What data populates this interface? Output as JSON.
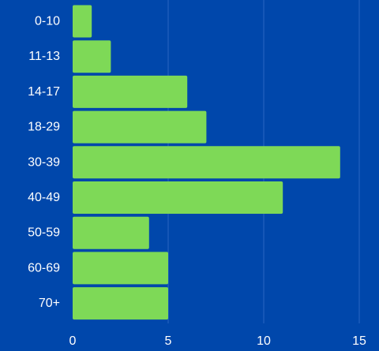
{
  "chart_data": {
    "type": "bar",
    "orientation": "horizontal",
    "title": "",
    "xlabel": "",
    "ylabel": "",
    "categories": [
      "0-10",
      "11-13",
      "14-17",
      "18-29",
      "30-39",
      "40-49",
      "50-59",
      "60-69",
      "70+"
    ],
    "values": [
      1,
      2,
      6,
      7,
      14,
      11,
      4,
      5,
      5
    ],
    "xlim": [
      0,
      15
    ],
    "xticks": [
      "0",
      "5",
      "10",
      "15"
    ],
    "grid": true,
    "legend": "none",
    "colors": {
      "background": "#0047ab",
      "bar": "#7ed957",
      "grid": "#2a64c0",
      "text": "#ffffff"
    }
  }
}
